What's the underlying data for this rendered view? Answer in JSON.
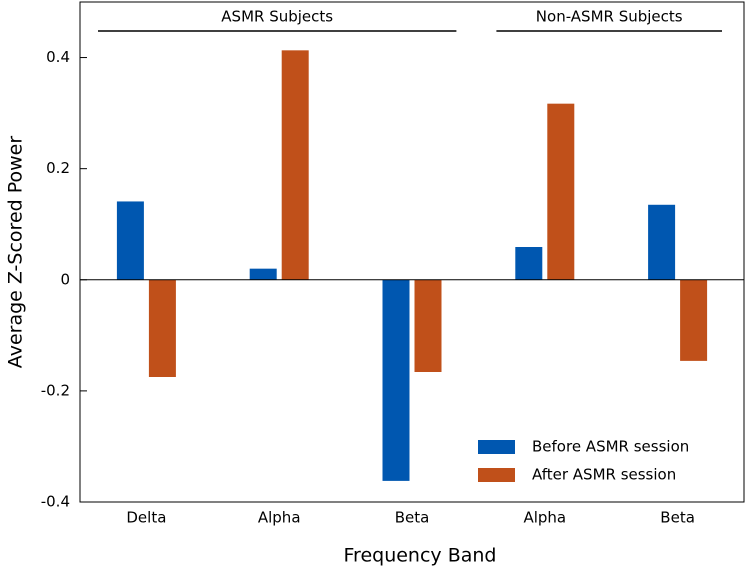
{
  "chart_data": {
    "type": "bar",
    "xlabel": "Frequency Band",
    "ylabel": "Average Z-Scored Power",
    "categories": [
      "Delta",
      "Alpha",
      "Beta",
      "Alpha",
      "Beta"
    ],
    "category_groups": [
      "ASMR Subjects",
      "ASMR Subjects",
      "ASMR Subjects",
      "Non-ASMR Subjects",
      "Non-ASMR Subjects"
    ],
    "series": [
      {
        "name": "Before ASMR session",
        "color": "#0057b0",
        "values": [
          0.141,
          0.02,
          -0.362,
          0.059,
          0.135
        ]
      },
      {
        "name": "After ASMR session",
        "color": "#c0501a",
        "values": [
          -0.175,
          0.413,
          -0.166,
          0.317,
          -0.146
        ]
      }
    ],
    "ylim": [
      -0.4,
      0.5
    ],
    "yticks": [
      -0.4,
      -0.2,
      0,
      0.2,
      0.4
    ],
    "legend": "lower right"
  }
}
